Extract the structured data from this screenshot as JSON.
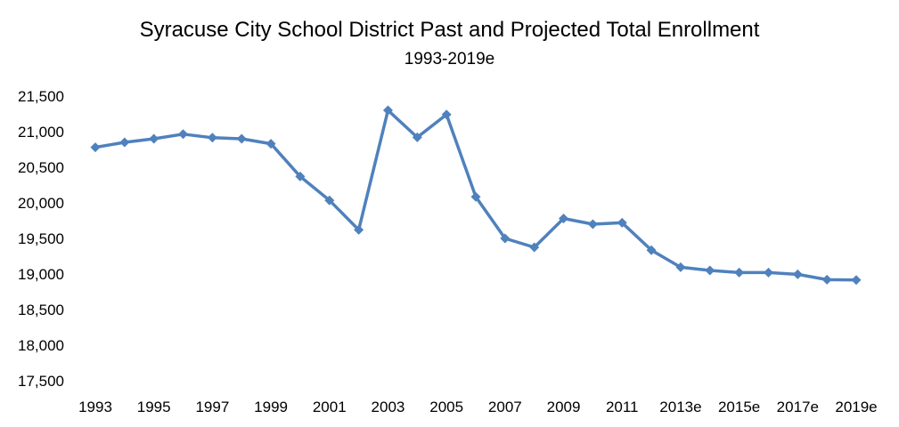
{
  "chart_data": {
    "type": "line",
    "title": "Syracuse City School District Past and Projected Total Enrollment",
    "subtitle": "1993-2019e",
    "xlabel": "",
    "ylabel": "",
    "ylim": [
      17500,
      21500
    ],
    "y_ticks": [
      17500,
      18000,
      18500,
      19000,
      19500,
      20000,
      20500,
      21000,
      21500
    ],
    "y_tick_labels": [
      "17,500",
      "18,000",
      "18,500",
      "19,000",
      "19,500",
      "20,000",
      "20,500",
      "21,000",
      "21,500"
    ],
    "categories": [
      "1993",
      "1994",
      "1995",
      "1996",
      "1997",
      "1998",
      "1999",
      "2000",
      "2001",
      "2002",
      "2003",
      "2004",
      "2005",
      "2006",
      "2007",
      "2008",
      "2009",
      "2010",
      "2011",
      "2012",
      "2013e",
      "2014e",
      "2015e",
      "2016e",
      "2017e",
      "2018e",
      "2019e"
    ],
    "x_tick_labels": [
      "1993",
      "",
      "1995",
      "",
      "1997",
      "",
      "1999",
      "",
      "2001",
      "",
      "2003",
      "",
      "2005",
      "",
      "2007",
      "",
      "2009",
      "",
      "2011",
      "",
      "2013e",
      "",
      "2015e",
      "",
      "2017e",
      "",
      "2019e"
    ],
    "series": [
      {
        "values": [
          20780,
          20850,
          20900,
          20965,
          20915,
          20900,
          20830,
          20370,
          20035,
          19620,
          21300,
          20920,
          21240,
          20085,
          19500,
          19375,
          19780,
          19700,
          19720,
          19335,
          19095,
          19050,
          19020,
          19020,
          18995,
          18920,
          18915
        ],
        "color": "#4f81bd"
      }
    ],
    "grid": false,
    "legend": "none"
  }
}
